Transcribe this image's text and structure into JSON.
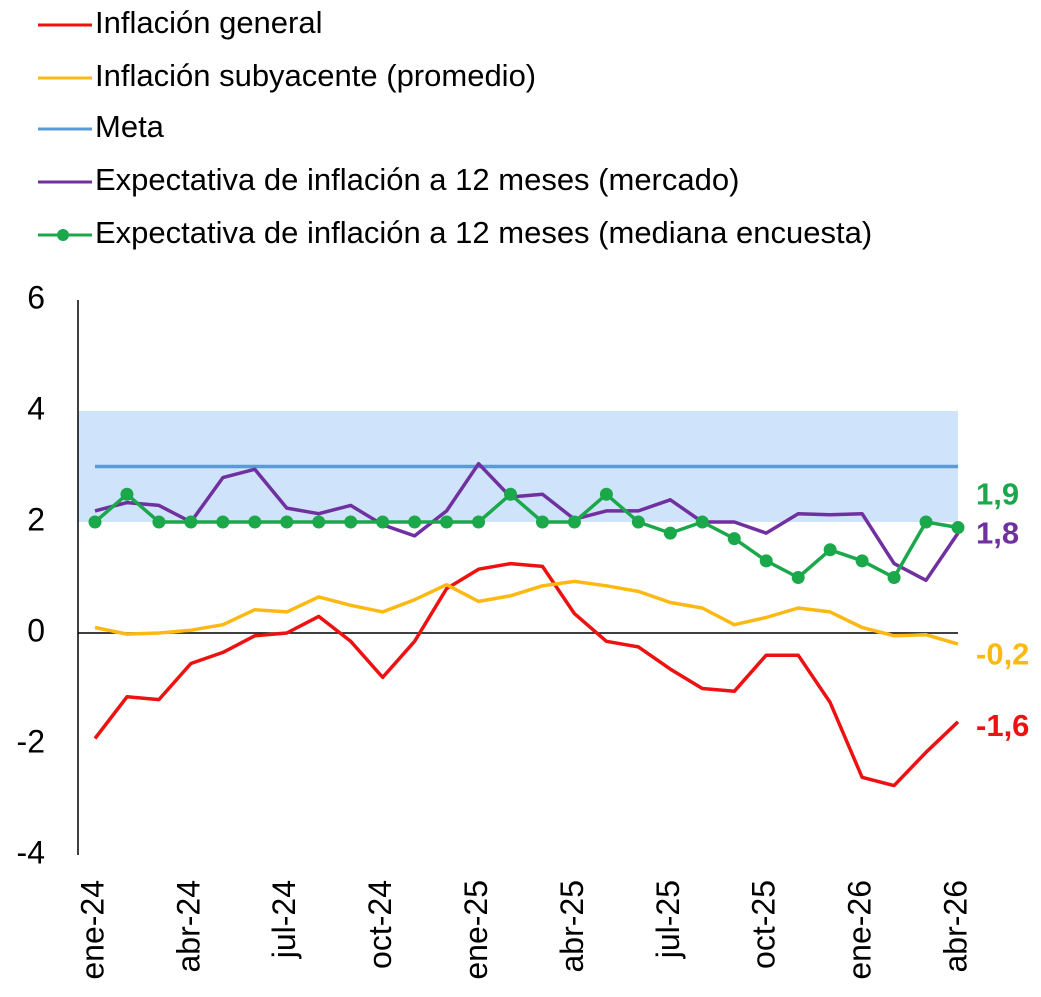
{
  "chart_data": {
    "type": "line",
    "categories": [
      "ene-24",
      null,
      null,
      "abr-24",
      null,
      null,
      "jul-24",
      null,
      null,
      "oct-24",
      null,
      null,
      "ene-25",
      null,
      null,
      "abr-25",
      null,
      null,
      "jul-25",
      null,
      null,
      "oct-25",
      null,
      null,
      "ene-26",
      null,
      null,
      "abr-26"
    ],
    "ylim": [
      -4,
      6
    ],
    "yticks": [
      -4,
      -2,
      0,
      2,
      4,
      6
    ],
    "grid": false,
    "band": {
      "from": 2,
      "to": 4,
      "color": "#cfe3fa"
    },
    "series": [
      {
        "name": "Inflación general",
        "color": "#ee1111",
        "values": [
          -1.9,
          -1.15,
          -1.2,
          -0.55,
          -0.35,
          -0.05,
          0.0,
          0.3,
          -0.15,
          -0.8,
          -0.15,
          0.8,
          1.15,
          1.25,
          1.2,
          0.35,
          -0.15,
          -0.25,
          -0.65,
          -1.0,
          -1.05,
          -0.4,
          -0.4,
          -1.25,
          -2.6,
          -2.75,
          -2.15,
          -1.6
        ],
        "value_labels": [
          null,
          null,
          null,
          null,
          null,
          null,
          null,
          null,
          null,
          null,
          null,
          null,
          null,
          null,
          null,
          null,
          null,
          null,
          null,
          null,
          null,
          null,
          null,
          null,
          null,
          null,
          null,
          "-1,6"
        ]
      },
      {
        "name": "Inflación subyacente (promedio)",
        "color": "#fdb913",
        "values": [
          0.1,
          -0.02,
          0.0,
          0.05,
          0.15,
          0.42,
          0.38,
          0.65,
          0.5,
          0.38,
          0.6,
          0.87,
          0.57,
          0.67,
          0.85,
          0.93,
          0.85,
          0.75,
          0.55,
          0.45,
          0.15,
          0.28,
          0.45,
          0.38,
          0.1,
          -0.05,
          -0.03,
          -0.2
        ],
        "value_labels": [
          null,
          null,
          null,
          null,
          null,
          null,
          null,
          null,
          null,
          null,
          null,
          null,
          null,
          null,
          null,
          null,
          null,
          null,
          null,
          null,
          null,
          null,
          null,
          null,
          null,
          null,
          null,
          "-0,2"
        ]
      },
      {
        "name": "Meta",
        "color": "#5b9bd5",
        "values": [
          3,
          3,
          3,
          3,
          3,
          3,
          3,
          3,
          3,
          3,
          3,
          3,
          3,
          3,
          3,
          3,
          3,
          3,
          3,
          3,
          3,
          3,
          3,
          3,
          3,
          3,
          3,
          3
        ]
      },
      {
        "name": "Expectativa de inflación a 12 meses (mercado)",
        "color": "#7030a0",
        "values": [
          2.2,
          2.35,
          2.3,
          2.0,
          2.8,
          2.95,
          2.25,
          2.15,
          2.3,
          1.95,
          1.75,
          2.2,
          3.05,
          2.45,
          2.5,
          2.05,
          2.2,
          2.2,
          2.4,
          2.0,
          2.0,
          1.8,
          2.15,
          2.13,
          2.15,
          1.25,
          0.95,
          1.8
        ],
        "value_labels": [
          null,
          null,
          null,
          null,
          null,
          null,
          null,
          null,
          null,
          null,
          null,
          null,
          null,
          null,
          null,
          null,
          null,
          null,
          null,
          null,
          null,
          null,
          null,
          null,
          null,
          null,
          null,
          "1,8"
        ]
      },
      {
        "name": "Expectativa de inflación a 12 meses (mediana encuesta)",
        "color": "#1aa84b",
        "marker": true,
        "values": [
          2.0,
          2.5,
          2.0,
          2.0,
          2.0,
          2.0,
          2.0,
          2.0,
          2.0,
          2.0,
          2.0,
          2.0,
          2.0,
          2.5,
          2.0,
          2.0,
          2.5,
          2.0,
          1.8,
          2.0,
          1.7,
          1.3,
          1.0,
          1.5,
          1.3,
          1.0,
          2.0,
          1.9
        ],
        "value_labels": [
          null,
          null,
          null,
          null,
          null,
          null,
          null,
          null,
          null,
          null,
          null,
          null,
          null,
          null,
          null,
          null,
          null,
          null,
          null,
          null,
          null,
          null,
          null,
          null,
          null,
          null,
          null,
          "1,9"
        ]
      }
    ]
  }
}
